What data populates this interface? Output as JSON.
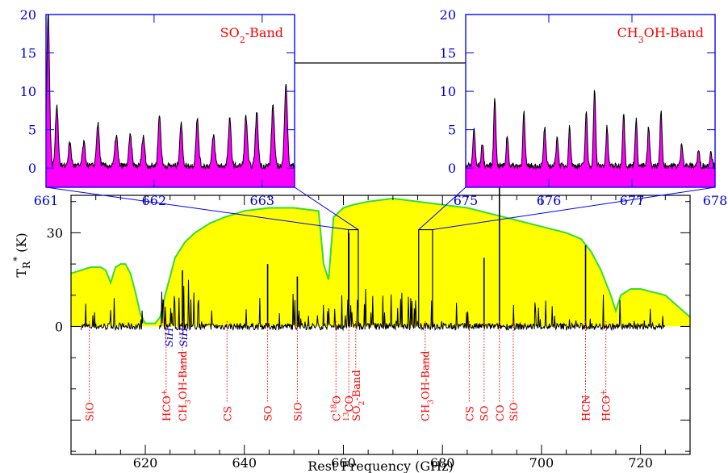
{
  "chart_data": {
    "type": "line",
    "xlabel": "Rest Frequency (GHz)",
    "ylabel_base": "T",
    "ylabel_sub": "R",
    "ylabel_sup": "*",
    "ylabel_unit": "(K)",
    "xlim": [
      605,
      730
    ],
    "ylim": [
      -41,
      42
    ],
    "xticks": [
      620,
      640,
      660,
      680,
      700,
      720
    ],
    "yticks": [
      0,
      30
    ],
    "colors": {
      "transmission_fill": "#ffff00",
      "transmission_line": "#33dd33",
      "spectrum": "#000000",
      "line_ids": "#ff0000",
      "sih": "#0000cc",
      "inset_fill": "#ff00ff",
      "inset_axis": "#0000ff"
    },
    "transmission": {
      "x": [
        605,
        607,
        609,
        611,
        612,
        613,
        614,
        615,
        616,
        617,
        618,
        619,
        620,
        621,
        622,
        623,
        624,
        626,
        628,
        630,
        633,
        636,
        640,
        645,
        650,
        655,
        656,
        657,
        658,
        660,
        662,
        665,
        670,
        675,
        680,
        685,
        690,
        695,
        700,
        705,
        708,
        710,
        712,
        714,
        715,
        716,
        718,
        720,
        725,
        730
      ],
      "y": [
        17,
        18,
        19,
        19,
        18,
        14,
        19,
        20,
        20,
        17,
        11,
        4,
        1,
        1,
        1,
        3,
        10,
        22,
        27,
        30,
        33,
        35,
        37,
        38,
        38,
        37,
        20,
        15,
        35,
        38,
        39,
        40,
        41,
        40,
        39,
        38,
        36,
        34,
        32,
        30,
        28,
        24,
        18,
        10,
        5,
        10,
        12,
        12,
        10,
        3
      ]
    },
    "spectrum_range": [
      607,
      725
    ],
    "line_ids": [
      {
        "label": "SiO",
        "x": 608.7
      },
      {
        "label": "HCO+",
        "x": 624.2
      },
      {
        "label": "CH3OH-Band",
        "x": 627.5
      },
      {
        "label": "CS",
        "x": 636.5
      },
      {
        "label": "SO",
        "x": 644.7
      },
      {
        "label": "SiO",
        "x": 650.7
      },
      {
        "label": "C18O",
        "x": 658.5
      },
      {
        "label": "13CO",
        "x": 661.1
      },
      {
        "label": "SO2-Band",
        "x": 662.5
      },
      {
        "label": "CH3OH-Band",
        "x": 676.5
      },
      {
        "label": "CS",
        "x": 685.4
      },
      {
        "label": "SO",
        "x": 688.4
      },
      {
        "label": "CO",
        "x": 691.5
      },
      {
        "label": "SiO",
        "x": 694.3
      },
      {
        "label": "HCN",
        "x": 708.9
      },
      {
        "label": "HCO+",
        "x": 713.0
      }
    ],
    "sih": [
      {
        "label": "SiH",
        "x": 624.9
      },
      {
        "label": "SiH",
        "x": 627.8
      }
    ],
    "insets": [
      {
        "name": "SO2-Band",
        "xlim": [
          661,
          663.3
        ],
        "ylim": [
          -2.5,
          20
        ],
        "xticks": [
          661,
          662,
          663
        ],
        "yticks": [
          0,
          5,
          10,
          15,
          20
        ],
        "zoom_range": [
          661,
          663
        ]
      },
      {
        "name": "CH3OH-Band",
        "xlim": [
          675,
          678
        ],
        "ylim": [
          -2.5,
          20
        ],
        "xticks": [
          675,
          676,
          677,
          678
        ],
        "yticks": [
          0,
          5,
          10,
          15,
          20
        ],
        "zoom_range": [
          675.2,
          678
        ]
      }
    ]
  },
  "labels": {
    "so2_band": [
      "SO",
      "2",
      "-Band"
    ],
    "ch3oh_band": [
      "CH",
      "3",
      "OH-Band"
    ]
  }
}
